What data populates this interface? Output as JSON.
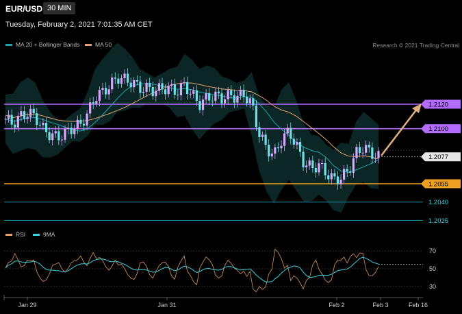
{
  "header": {
    "symbol": "EUR/USD",
    "timeframe": "30 MIN",
    "timestamp": "Tuesday, February 2, 2021 7:01:35 AM CET"
  },
  "legend": {
    "items": [
      {
        "label": "MA 20 + Bollinger Bands",
        "color": "#1aa6b5"
      },
      {
        "label": "MA 50",
        "color": "#e0a070"
      }
    ],
    "copyright": "Research © 2021 Trading Central"
  },
  "levels": [
    {
      "price": "1.2120",
      "style": "resistance",
      "color": "#b36bff",
      "label_bg": "#b36bff",
      "label_fg": "#000000"
    },
    {
      "price": "1.2100",
      "style": "resistance",
      "color": "#b36bff",
      "label_bg": "#b36bff",
      "label_fg": "#000000"
    },
    {
      "price": "1.2077",
      "style": "current",
      "color": "#cccccc",
      "label_bg": "#e6e6e6",
      "label_fg": "#000000"
    },
    {
      "price": "1.2055",
      "style": "pivot",
      "color": "#f0a020",
      "label_bg": "#f0a020",
      "label_fg": "#000000"
    },
    {
      "price": "1.2040",
      "style": "support",
      "color": "#1aa6b5",
      "label_bg": "",
      "label_fg": "#3fd0e0"
    },
    {
      "price": "1.2025",
      "style": "support",
      "color": "#1aa6b5",
      "label_bg": "",
      "label_fg": "#3fd0e0"
    }
  ],
  "rsi": {
    "legend": [
      {
        "label": "RSI",
        "color": "#e0a070"
      },
      {
        "label": "9MA",
        "color": "#3fd0e0"
      }
    ],
    "levels": [
      "70",
      "50",
      "30"
    ]
  },
  "xaxis": {
    "labels": [
      "Jan 29",
      "Jan 31",
      "Feb 2",
      "Feb 3",
      "Feb 16"
    ]
  },
  "colors": {
    "bull_candle": "#d8a8ff",
    "bear_candle": "#6fe0ea",
    "band_fill": "#0d2a2a",
    "arrow": "#e0b080"
  }
}
